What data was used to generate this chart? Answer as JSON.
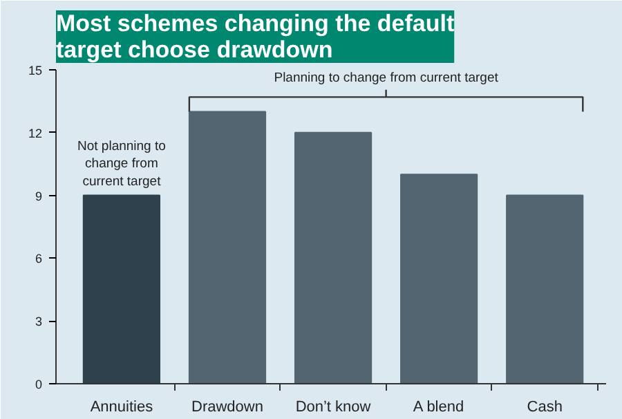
{
  "chart_data": {
    "type": "bar",
    "title": "Most schemes changing the default\ntarget choose drawdown",
    "categories": [
      "Annuities",
      "Drawdown",
      "Don’t know",
      "A blend",
      "Cash"
    ],
    "values": [
      9,
      13,
      12,
      10,
      9
    ],
    "colors": [
      "#2e414c",
      "#526570",
      "#526570",
      "#526570",
      "#526570"
    ],
    "ylim": [
      0,
      15
    ],
    "yticks": [
      0,
      3,
      6,
      9,
      12,
      15
    ],
    "grid": false,
    "annotations": [
      {
        "text": "Not planning to\nchange from\ncurrent target",
        "x": "Annuities",
        "y": 9
      },
      "Planning to change from current target"
    ]
  }
}
